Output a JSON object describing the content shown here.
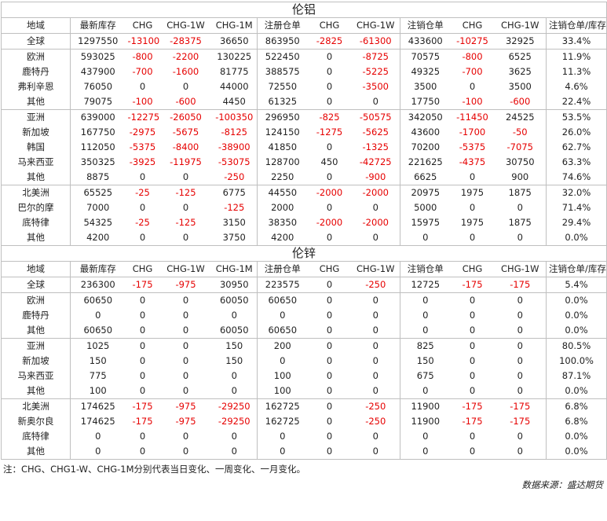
{
  "headers": [
    "地域",
    "最新库存",
    "CHG",
    "CHG-1W",
    "CHG-1M",
    "注册仓单",
    "CHG",
    "CHG-1W",
    "注销仓单",
    "CHG",
    "CHG-1W",
    "注销仓单/库存比"
  ],
  "sections": [
    {
      "title": "伦铝",
      "groups": [
        {
          "rows": [
            [
              "全球",
              "1297550",
              "-13100",
              "-28375",
              "36650",
              "863950",
              "-2825",
              "-61300",
              "433600",
              "-10275",
              "32925",
              "33.4%"
            ]
          ]
        },
        {
          "rows": [
            [
              "欧洲",
              "593025",
              "-800",
              "-2200",
              "130225",
              "522450",
              "0",
              "-8725",
              "70575",
              "-800",
              "6525",
              "11.9%"
            ],
            [
              "鹿特丹",
              "437900",
              "-700",
              "-1600",
              "81775",
              "388575",
              "0",
              "-5225",
              "49325",
              "-700",
              "3625",
              "11.3%"
            ],
            [
              "弗利辛恩",
              "76050",
              "0",
              "0",
              "44000",
              "72550",
              "0",
              "-3500",
              "3500",
              "0",
              "3500",
              "4.6%"
            ],
            [
              "其他",
              "79075",
              "-100",
              "-600",
              "4450",
              "61325",
              "0",
              "0",
              "17750",
              "-100",
              "-600",
              "22.4%"
            ]
          ]
        },
        {
          "rows": [
            [
              "亚洲",
              "639000",
              "-12275",
              "-26050",
              "-100350",
              "296950",
              "-825",
              "-50575",
              "342050",
              "-11450",
              "24525",
              "53.5%"
            ],
            [
              "新加坡",
              "167750",
              "-2975",
              "-5675",
              "-8125",
              "124150",
              "-1275",
              "-5625",
              "43600",
              "-1700",
              "-50",
              "26.0%"
            ],
            [
              "韩国",
              "112050",
              "-5375",
              "-8400",
              "-38900",
              "41850",
              "0",
              "-1325",
              "70200",
              "-5375",
              "-7075",
              "62.7%"
            ],
            [
              "马来西亚",
              "350325",
              "-3925",
              "-11975",
              "-53075",
              "128700",
              "450",
              "-42725",
              "221625",
              "-4375",
              "30750",
              "63.3%"
            ],
            [
              "其他",
              "8875",
              "0",
              "0",
              "-250",
              "2250",
              "0",
              "-900",
              "6625",
              "0",
              "900",
              "74.6%"
            ]
          ]
        },
        {
          "rows": [
            [
              "北美洲",
              "65525",
              "-25",
              "-125",
              "6775",
              "44550",
              "-2000",
              "-2000",
              "20975",
              "1975",
              "1875",
              "32.0%"
            ],
            [
              "巴尔的摩",
              "7000",
              "0",
              "0",
              "-125",
              "2000",
              "0",
              "0",
              "5000",
              "0",
              "0",
              "71.4%"
            ],
            [
              "底特律",
              "54325",
              "-25",
              "-125",
              "3150",
              "38350",
              "-2000",
              "-2000",
              "15975",
              "1975",
              "1875",
              "29.4%"
            ],
            [
              "其他",
              "4200",
              "0",
              "0",
              "3750",
              "4200",
              "0",
              "0",
              "0",
              "0",
              "0",
              "0.0%"
            ]
          ]
        }
      ]
    },
    {
      "title": "伦锌",
      "groups": [
        {
          "rows": [
            [
              "全球",
              "236300",
              "-175",
              "-975",
              "30950",
              "223575",
              "0",
              "-250",
              "12725",
              "-175",
              "-175",
              "5.4%"
            ]
          ]
        },
        {
          "rows": [
            [
              "欧洲",
              "60650",
              "0",
              "0",
              "60050",
              "60650",
              "0",
              "0",
              "0",
              "0",
              "0",
              "0.0%"
            ],
            [
              "鹿特丹",
              "0",
              "0",
              "0",
              "0",
              "0",
              "0",
              "0",
              "0",
              "0",
              "0",
              "0.0%"
            ],
            [
              "其他",
              "60650",
              "0",
              "0",
              "60050",
              "60650",
              "0",
              "0",
              "0",
              "0",
              "0",
              "0.0%"
            ]
          ]
        },
        {
          "rows": [
            [
              "亚洲",
              "1025",
              "0",
              "0",
              "150",
              "200",
              "0",
              "0",
              "825",
              "0",
              "0",
              "80.5%"
            ],
            [
              "新加坡",
              "150",
              "0",
              "0",
              "150",
              "0",
              "0",
              "0",
              "150",
              "0",
              "0",
              "100.0%"
            ],
            [
              "马来西亚",
              "775",
              "0",
              "0",
              "0",
              "100",
              "0",
              "0",
              "675",
              "0",
              "0",
              "87.1%"
            ],
            [
              "其他",
              "100",
              "0",
              "0",
              "0",
              "100",
              "0",
              "0",
              "0",
              "0",
              "0",
              "0.0%"
            ]
          ]
        },
        {
          "rows": [
            [
              "北美洲",
              "174625",
              "-175",
              "-975",
              "-29250",
              "162725",
              "0",
              "-250",
              "11900",
              "-175",
              "-175",
              "6.8%"
            ],
            [
              "新奥尔良",
              "174625",
              "-175",
              "-975",
              "-29250",
              "162725",
              "0",
              "-250",
              "11900",
              "-175",
              "-175",
              "6.8%"
            ],
            [
              "底特律",
              "0",
              "0",
              "0",
              "0",
              "0",
              "0",
              "0",
              "0",
              "0",
              "0",
              "0.0%"
            ],
            [
              "其他",
              "0",
              "0",
              "0",
              "0",
              "0",
              "0",
              "0",
              "0",
              "0",
              "0",
              "0.0%"
            ]
          ]
        }
      ]
    }
  ],
  "note": "注：CHG、CHG1-W、CHG-1M分别代表当日变化、一周变化、一月变化。",
  "source": "数据来源：盛达期货",
  "colors": {
    "negative": "#e60000",
    "border": "#bfbfbf",
    "text": "#222222"
  }
}
